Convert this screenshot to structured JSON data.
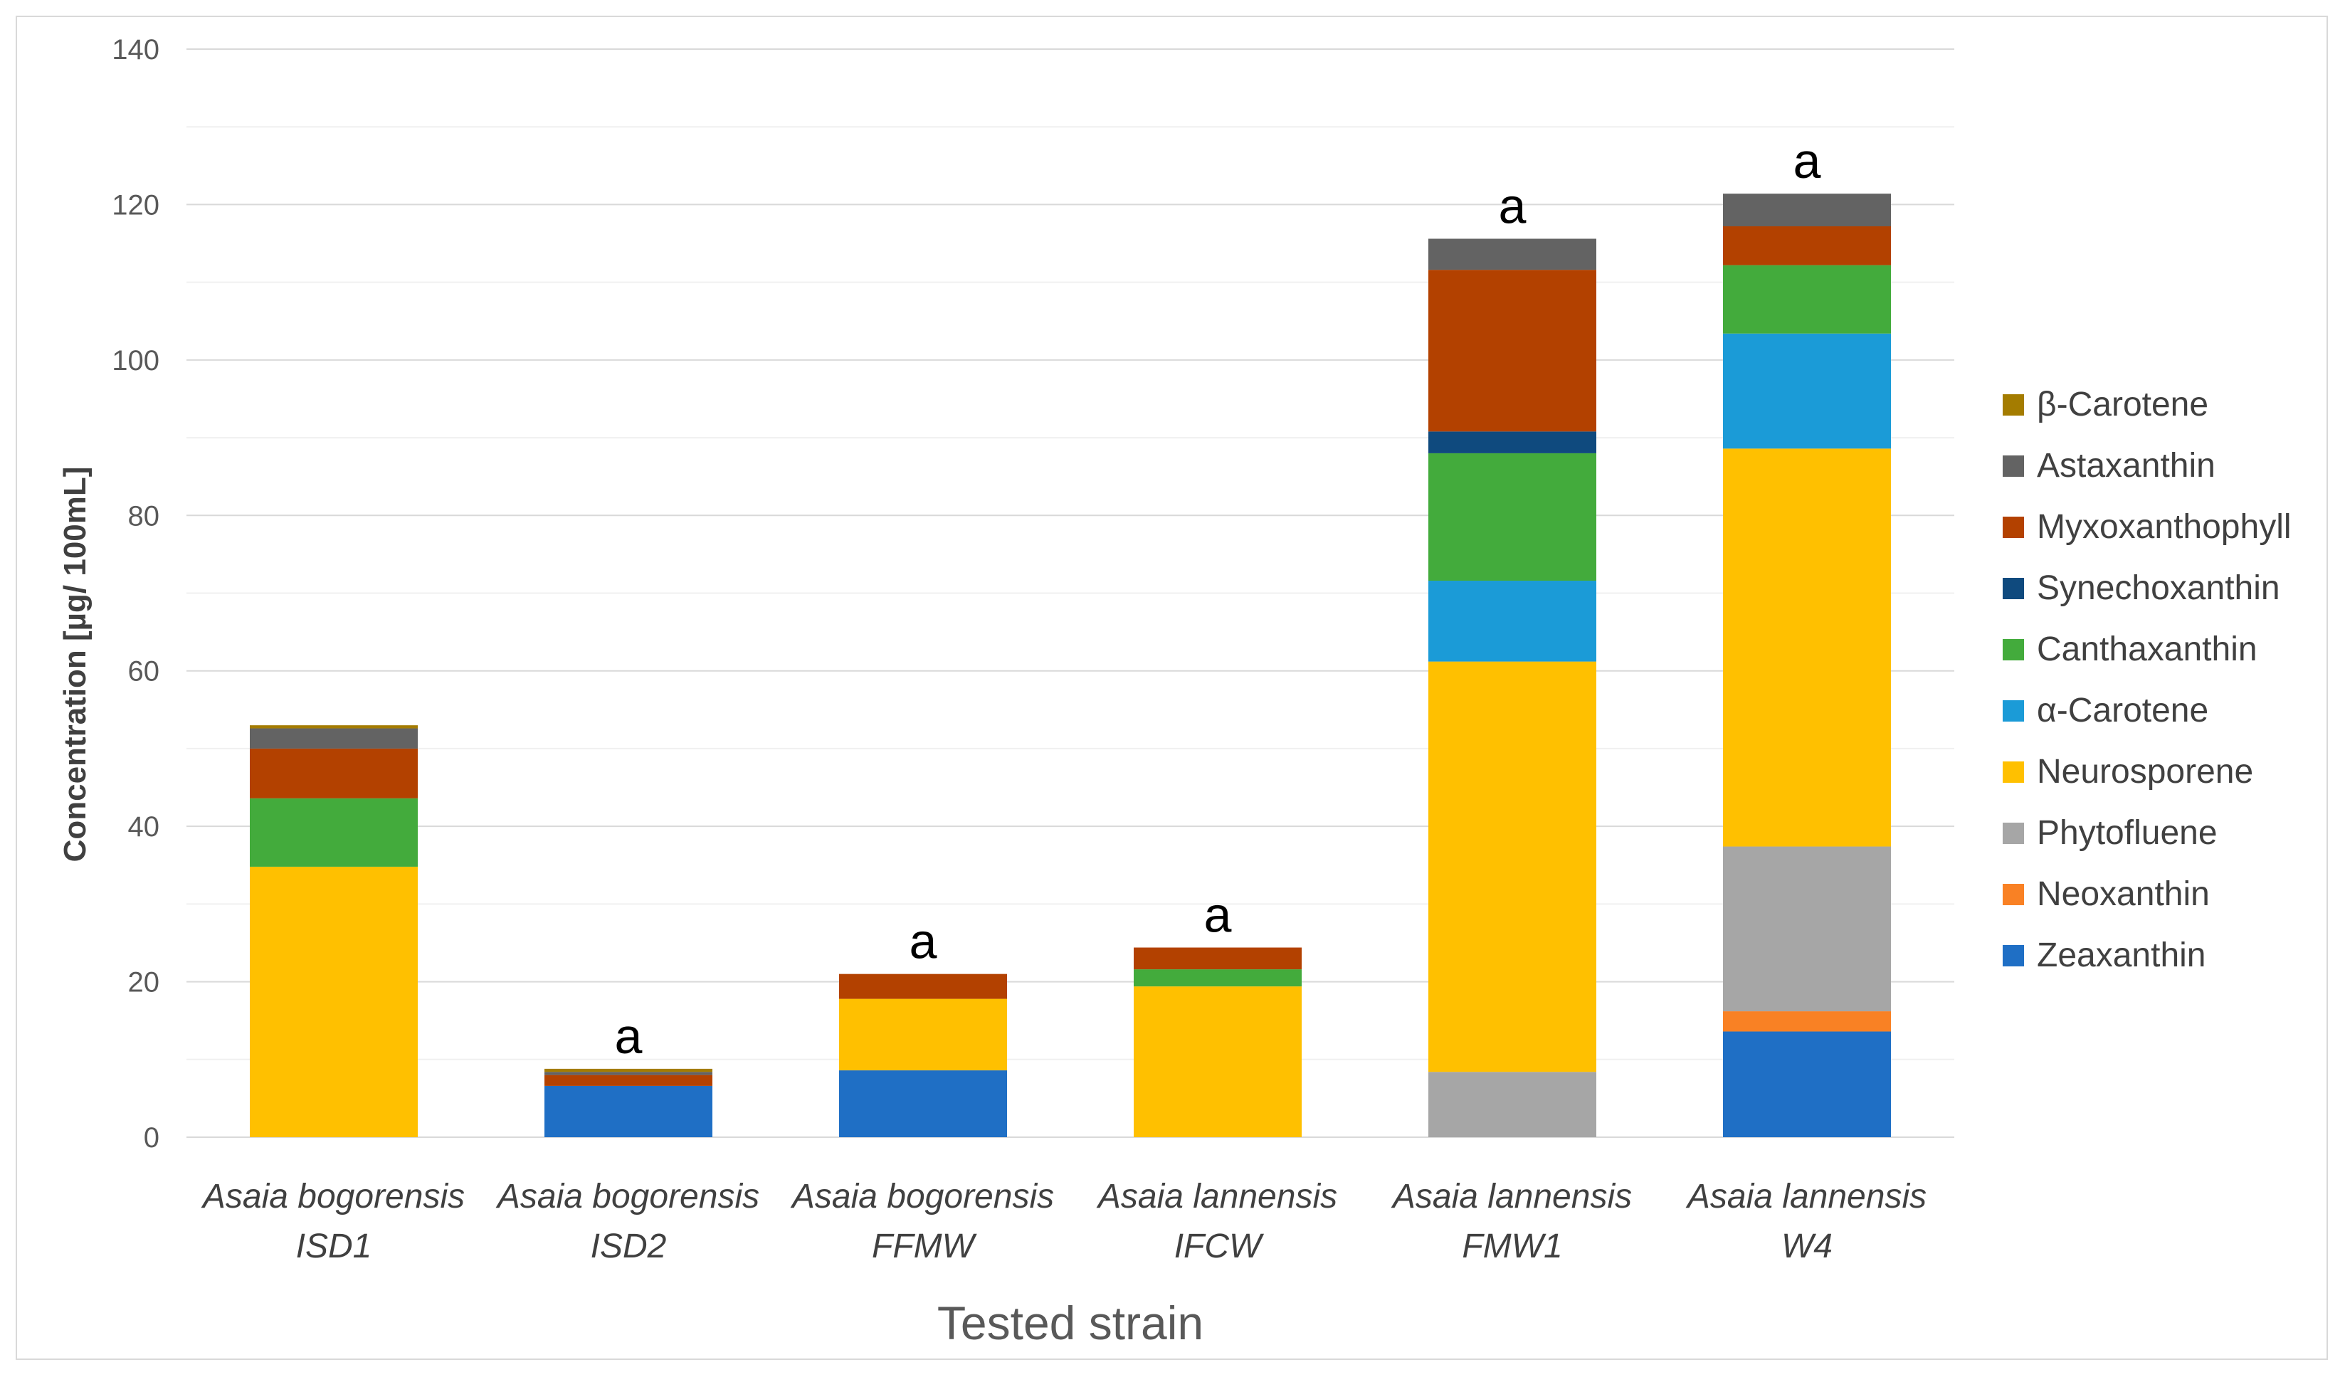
{
  "chart_data": {
    "type": "bar",
    "stacked": true,
    "title": "",
    "xlabel": "Tested strain",
    "ylabel": "Concentration [µg/ 100mL]",
    "ylim": [
      0,
      140
    ],
    "yticks": [
      0,
      20,
      40,
      60,
      80,
      100,
      120,
      140
    ],
    "grid": true,
    "legend_position": "right",
    "categories": [
      [
        "Asaia bogorensis",
        "ISD1"
      ],
      [
        "Asaia bogorensis",
        "ISD2"
      ],
      [
        "Asaia bogorensis",
        "FFMW"
      ],
      [
        "Asaia lannensis",
        "IFCW"
      ],
      [
        "Asaia lannensis",
        "FMW1"
      ],
      [
        "Asaia lannensis",
        "W4"
      ]
    ],
    "series": [
      {
        "name": "Zeaxanthin",
        "color": "#1f6fc5",
        "values": [
          0,
          6.6,
          8.6,
          0,
          0,
          13.6
        ]
      },
      {
        "name": "Neoxanthin",
        "color": "#f98124",
        "values": [
          0,
          0,
          0,
          0,
          0,
          2.6
        ]
      },
      {
        "name": "Phytofluene",
        "color": "#a6a6a6",
        "values": [
          0,
          0,
          0,
          0,
          8.4,
          21.2
        ]
      },
      {
        "name": "Neurosporene",
        "color": "#ffc000",
        "values": [
          34.8,
          0,
          9.2,
          19.4,
          52.8,
          51.2
        ]
      },
      {
        "name": "α-Carotene",
        "color": "#1b9bd7",
        "values": [
          0,
          0,
          0,
          0,
          10.4,
          14.8
        ]
      },
      {
        "name": "Canthaxanthin",
        "color": "#43ab3c",
        "values": [
          8.8,
          0,
          0,
          2.2,
          16.4,
          8.8
        ]
      },
      {
        "name": "Synechoxanthin",
        "color": "#0f4a7e",
        "values": [
          0,
          0,
          0,
          0,
          2.8,
          0
        ]
      },
      {
        "name": "Myxoxanthophyll",
        "color": "#b34100",
        "values": [
          6.4,
          1.4,
          3.2,
          2.8,
          20.8,
          5.0
        ]
      },
      {
        "name": "Astaxanthin",
        "color": "#636363",
        "values": [
          2.6,
          0.4,
          0,
          0,
          4.0,
          4.2
        ]
      },
      {
        "name": "β-Carotene",
        "color": "#a47c00",
        "values": [
          0.4,
          0.4,
          0,
          0,
          0,
          0
        ]
      }
    ],
    "annotations": [
      "",
      "a",
      "a",
      "a",
      "a",
      "a"
    ]
  }
}
